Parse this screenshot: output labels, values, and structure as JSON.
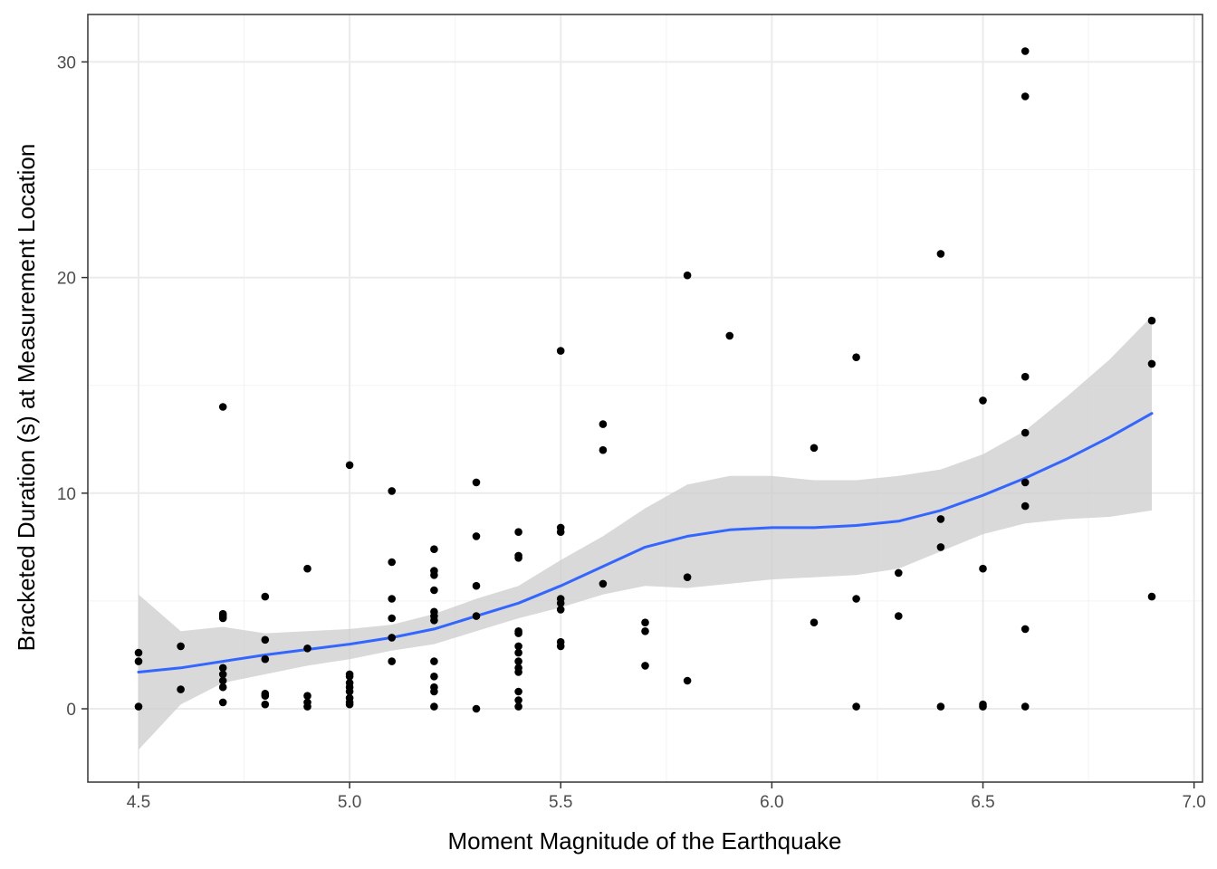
{
  "chart_data": {
    "type": "scatter",
    "title": "",
    "xlabel": "Moment Magnitude of the Earthquake",
    "ylabel": "Bracketed Duration (s) at Measurement Location",
    "xlim": [
      4.38,
      7.02
    ],
    "ylim": [
      -3.4,
      32.2
    ],
    "x_ticks": [
      4.5,
      5.0,
      5.5,
      6.0,
      6.5,
      7.0
    ],
    "x_tick_labels": [
      "4.5",
      "5.0",
      "5.5",
      "6.0",
      "6.5",
      "7.0"
    ],
    "y_ticks": [
      0,
      10,
      20,
      30
    ],
    "y_tick_labels": [
      "0",
      "10",
      "20",
      "30"
    ],
    "grid": true,
    "legend": "none",
    "colors": {
      "points": "#000000",
      "smooth_line": "#3366FF",
      "confidence_band": "#cccccc",
      "grid_major": "#ebebeb",
      "grid_minor": "#f3f3f3",
      "panel_border": "#333333"
    },
    "points": [
      {
        "x": 4.5,
        "y": 2.6
      },
      {
        "x": 4.5,
        "y": 2.2
      },
      {
        "x": 4.5,
        "y": 0.1
      },
      {
        "x": 4.6,
        "y": 2.9
      },
      {
        "x": 4.6,
        "y": 0.9
      },
      {
        "x": 4.7,
        "y": 14.0
      },
      {
        "x": 4.7,
        "y": 4.4
      },
      {
        "x": 4.7,
        "y": 4.3
      },
      {
        "x": 4.7,
        "y": 4.2
      },
      {
        "x": 4.7,
        "y": 1.9
      },
      {
        "x": 4.7,
        "y": 1.6
      },
      {
        "x": 4.7,
        "y": 1.3
      },
      {
        "x": 4.7,
        "y": 1.0
      },
      {
        "x": 4.7,
        "y": 0.3
      },
      {
        "x": 4.8,
        "y": 5.2
      },
      {
        "x": 4.8,
        "y": 3.2
      },
      {
        "x": 4.8,
        "y": 2.3
      },
      {
        "x": 4.8,
        "y": 0.7
      },
      {
        "x": 4.8,
        "y": 0.6
      },
      {
        "x": 4.8,
        "y": 0.2
      },
      {
        "x": 4.9,
        "y": 6.5
      },
      {
        "x": 4.9,
        "y": 2.8
      },
      {
        "x": 4.9,
        "y": 0.6
      },
      {
        "x": 4.9,
        "y": 0.3
      },
      {
        "x": 4.9,
        "y": 0.1
      },
      {
        "x": 5.0,
        "y": 11.3
      },
      {
        "x": 5.0,
        "y": 1.6
      },
      {
        "x": 5.0,
        "y": 1.5
      },
      {
        "x": 5.0,
        "y": 1.2
      },
      {
        "x": 5.0,
        "y": 1.0
      },
      {
        "x": 5.0,
        "y": 0.8
      },
      {
        "x": 5.0,
        "y": 0.5
      },
      {
        "x": 5.0,
        "y": 0.3
      },
      {
        "x": 5.0,
        "y": 0.2
      },
      {
        "x": 5.1,
        "y": 10.1
      },
      {
        "x": 5.1,
        "y": 6.8
      },
      {
        "x": 5.1,
        "y": 5.1
      },
      {
        "x": 5.1,
        "y": 4.2
      },
      {
        "x": 5.1,
        "y": 3.3
      },
      {
        "x": 5.1,
        "y": 2.2
      },
      {
        "x": 5.2,
        "y": 7.4
      },
      {
        "x": 5.2,
        "y": 6.4
      },
      {
        "x": 5.2,
        "y": 6.2
      },
      {
        "x": 5.2,
        "y": 5.5
      },
      {
        "x": 5.2,
        "y": 4.5
      },
      {
        "x": 5.2,
        "y": 4.3
      },
      {
        "x": 5.2,
        "y": 4.1
      },
      {
        "x": 5.2,
        "y": 2.2
      },
      {
        "x": 5.2,
        "y": 1.5
      },
      {
        "x": 5.2,
        "y": 1.0
      },
      {
        "x": 5.2,
        "y": 0.8
      },
      {
        "x": 5.2,
        "y": 0.1
      },
      {
        "x": 5.3,
        "y": 10.5
      },
      {
        "x": 5.3,
        "y": 8.0
      },
      {
        "x": 5.3,
        "y": 5.7
      },
      {
        "x": 5.3,
        "y": 4.3
      },
      {
        "x": 5.3,
        "y": 0.0
      },
      {
        "x": 5.4,
        "y": 8.2
      },
      {
        "x": 5.4,
        "y": 7.1
      },
      {
        "x": 5.4,
        "y": 7.0
      },
      {
        "x": 5.4,
        "y": 3.6
      },
      {
        "x": 5.4,
        "y": 3.5
      },
      {
        "x": 5.4,
        "y": 2.9
      },
      {
        "x": 5.4,
        "y": 2.6
      },
      {
        "x": 5.4,
        "y": 2.2
      },
      {
        "x": 5.4,
        "y": 1.9
      },
      {
        "x": 5.4,
        "y": 1.7
      },
      {
        "x": 5.4,
        "y": 0.8
      },
      {
        "x": 5.4,
        "y": 0.4
      },
      {
        "x": 5.4,
        "y": 0.1
      },
      {
        "x": 5.5,
        "y": 16.6
      },
      {
        "x": 5.5,
        "y": 8.4
      },
      {
        "x": 5.5,
        "y": 8.2
      },
      {
        "x": 5.5,
        "y": 5.1
      },
      {
        "x": 5.5,
        "y": 4.9
      },
      {
        "x": 5.5,
        "y": 4.6
      },
      {
        "x": 5.5,
        "y": 3.1
      },
      {
        "x": 5.5,
        "y": 2.9
      },
      {
        "x": 5.6,
        "y": 13.2
      },
      {
        "x": 5.6,
        "y": 12.0
      },
      {
        "x": 5.6,
        "y": 5.8
      },
      {
        "x": 5.7,
        "y": 4.0
      },
      {
        "x": 5.7,
        "y": 3.6
      },
      {
        "x": 5.7,
        "y": 2.0
      },
      {
        "x": 5.8,
        "y": 20.1
      },
      {
        "x": 5.8,
        "y": 6.1
      },
      {
        "x": 5.8,
        "y": 1.3
      },
      {
        "x": 5.9,
        "y": 17.3
      },
      {
        "x": 6.1,
        "y": 12.1
      },
      {
        "x": 6.1,
        "y": 4.0
      },
      {
        "x": 6.2,
        "y": 16.3
      },
      {
        "x": 6.2,
        "y": 5.1
      },
      {
        "x": 6.2,
        "y": 0.1
      },
      {
        "x": 6.3,
        "y": 6.3
      },
      {
        "x": 6.3,
        "y": 4.3
      },
      {
        "x": 6.4,
        "y": 21.1
      },
      {
        "x": 6.4,
        "y": 8.8
      },
      {
        "x": 6.4,
        "y": 7.5
      },
      {
        "x": 6.4,
        "y": 0.1
      },
      {
        "x": 6.5,
        "y": 14.3
      },
      {
        "x": 6.5,
        "y": 6.5
      },
      {
        "x": 6.5,
        "y": 0.2
      },
      {
        "x": 6.5,
        "y": 0.1
      },
      {
        "x": 6.6,
        "y": 30.5
      },
      {
        "x": 6.6,
        "y": 28.4
      },
      {
        "x": 6.6,
        "y": 15.4
      },
      {
        "x": 6.6,
        "y": 12.8
      },
      {
        "x": 6.6,
        "y": 10.5
      },
      {
        "x": 6.6,
        "y": 9.4
      },
      {
        "x": 6.6,
        "y": 3.7
      },
      {
        "x": 6.6,
        "y": 0.1
      },
      {
        "x": 6.9,
        "y": 18.0
      },
      {
        "x": 6.9,
        "y": 16.0
      },
      {
        "x": 6.9,
        "y": 5.2
      }
    ],
    "smooth": {
      "method": "loess",
      "x": [
        4.5,
        4.6,
        4.7,
        4.8,
        4.9,
        5.0,
        5.1,
        5.2,
        5.3,
        5.4,
        5.5,
        5.6,
        5.7,
        5.8,
        5.9,
        6.0,
        6.1,
        6.2,
        6.3,
        6.4,
        6.5,
        6.6,
        6.7,
        6.8,
        6.9
      ],
      "y": [
        1.7,
        1.9,
        2.2,
        2.5,
        2.75,
        3.0,
        3.3,
        3.7,
        4.3,
        4.9,
        5.7,
        6.6,
        7.5,
        8.0,
        8.3,
        8.4,
        8.4,
        8.5,
        8.7,
        9.2,
        9.9,
        10.7,
        11.6,
        12.6,
        13.7
      ],
      "lower": [
        -1.9,
        0.2,
        1.2,
        1.6,
        2.0,
        2.3,
        2.7,
        3.0,
        3.6,
        4.2,
        4.7,
        5.3,
        5.7,
        5.6,
        5.8,
        6.0,
        6.1,
        6.2,
        6.5,
        7.3,
        8.1,
        8.6,
        8.8,
        8.9,
        9.2
      ],
      "upper": [
        5.3,
        3.6,
        3.8,
        3.5,
        3.6,
        3.7,
        3.9,
        4.4,
        5.1,
        5.7,
        6.9,
        8.0,
        9.3,
        10.4,
        10.8,
        10.8,
        10.6,
        10.6,
        10.8,
        11.1,
        11.8,
        12.9,
        14.5,
        16.2,
        18.2
      ]
    }
  }
}
